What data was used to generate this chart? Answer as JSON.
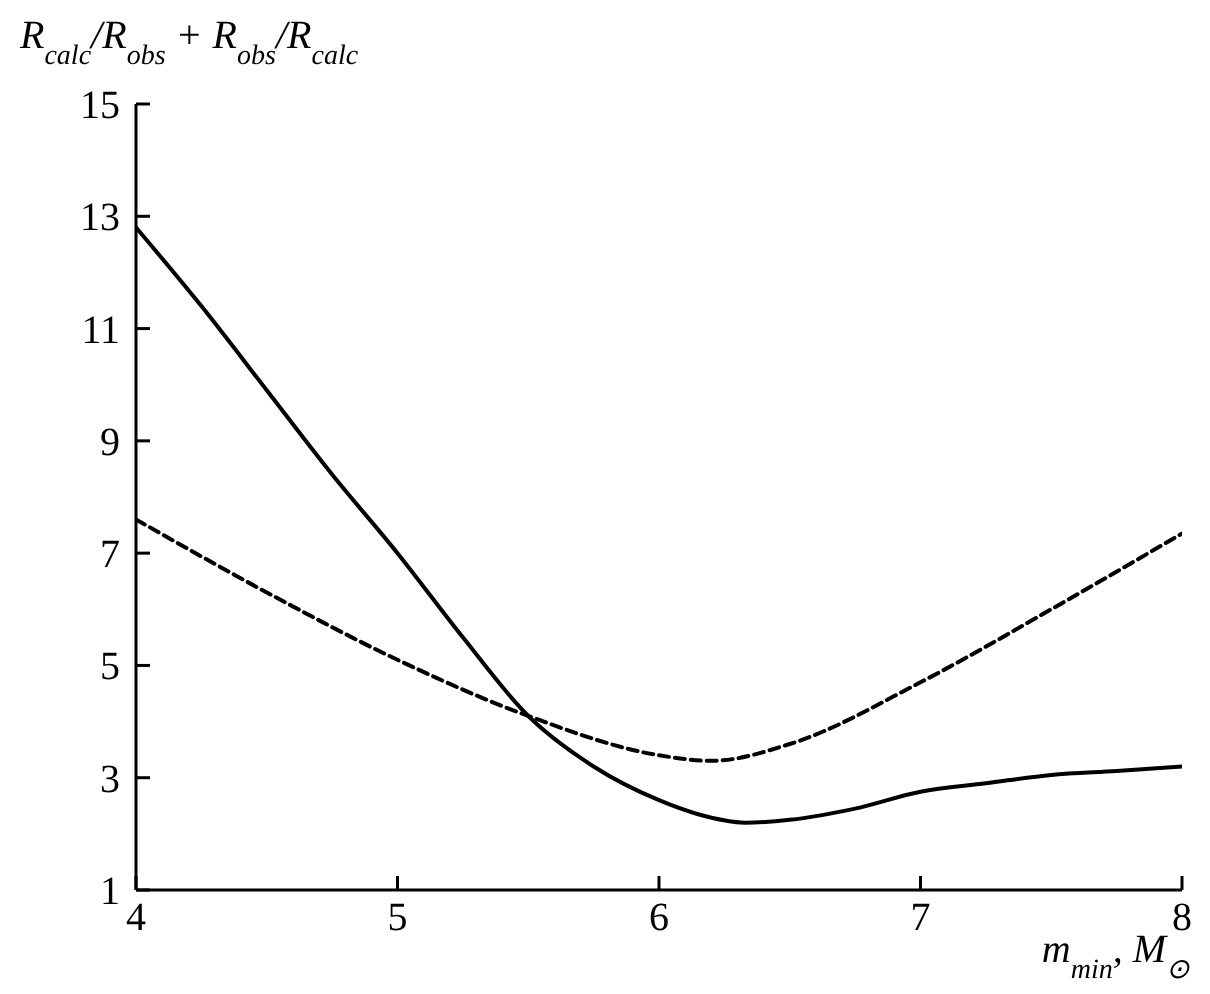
{
  "chart_data": {
    "type": "line",
    "ylabel": "R$_{calc}$/R$_{obs}$ + R$_{obs}$/R$_{calc}$",
    "xlabel": "m$_{min}$, M$_{⊙}$",
    "xlim": [
      4,
      8
    ],
    "xticks": [
      4,
      5,
      6,
      7,
      8
    ],
    "ylim": [
      1,
      15
    ],
    "yticks": [
      1,
      3,
      5,
      7,
      9,
      11,
      13,
      15
    ],
    "grid": false,
    "marker": "none",
    "series": [
      {
        "color": "#000000",
        "line_style": "solid",
        "x": [
          4,
          4.25,
          4.5,
          4.75,
          5,
          5.25,
          5.5,
          5.75,
          6,
          6.15,
          6.33,
          6.5,
          6.75,
          7,
          7.25,
          7.5,
          7.75,
          8
        ],
        "values": [
          12.8,
          11.4,
          9.9,
          8.4,
          7.0,
          5.5,
          4.1,
          3.2,
          2.6,
          2.35,
          2.2,
          2.25,
          2.45,
          2.75,
          2.9,
          3.05,
          3.12,
          3.2
        ]
      },
      {
        "color": "#000000",
        "line_style": "dashed",
        "x": [
          4,
          4.5,
          5,
          5.5,
          6,
          6.2,
          6.5,
          7,
          7.5,
          8
        ],
        "values": [
          7.6,
          6.3,
          5.1,
          4.1,
          3.4,
          3.3,
          3.6,
          4.7,
          6.0,
          7.35
        ]
      }
    ]
  }
}
